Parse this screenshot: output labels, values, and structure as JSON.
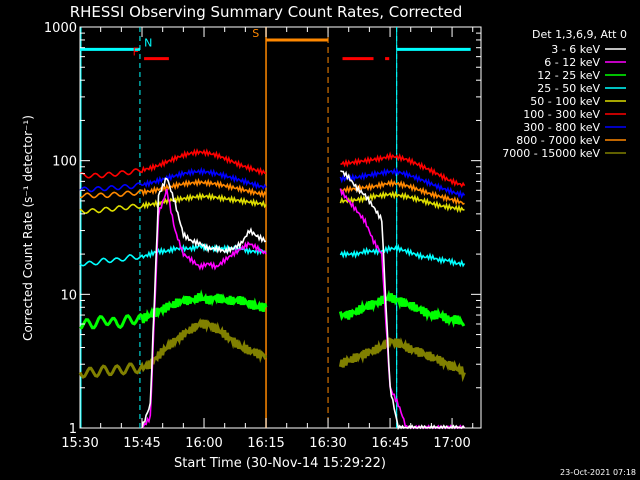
{
  "chart_data": {
    "type": "line",
    "title": "RHESSI Observing Summary Count Rates, Corrected",
    "xlabel": "Start Time (30-Nov-14 15:29:22)",
    "ylabel": "Corrected Count Rate (s⁻¹ detector⁻¹)",
    "yscale": "log",
    "ylim": [
      1,
      1000
    ],
    "xlim_minutes_after_1530": [
      0,
      97
    ],
    "x_ticks": [
      "15:30",
      "15:45",
      "16:00",
      "16:15",
      "16:30",
      "16:45",
      "17:00"
    ],
    "x_tick_minutes": [
      0,
      15,
      30,
      45,
      60,
      75,
      90
    ],
    "y_ticks": [
      "1",
      "10",
      "100",
      "1000"
    ],
    "y_tick_values": [
      1,
      10,
      100,
      1000
    ],
    "legend_header": "Det 1,3,6,9, Att 0",
    "legend_position": "right",
    "data_gap_minutes": [
      45,
      63
    ],
    "series": [
      {
        "name": "3 - 6 keV",
        "color": "#ffffff",
        "x": [
          15,
          17,
          19,
          21,
          23,
          25,
          27,
          29,
          31,
          33,
          35,
          37,
          39,
          41,
          43,
          45,
          63,
          65,
          67,
          69,
          71,
          73,
          75,
          77,
          79,
          81,
          83,
          85,
          87,
          89,
          91,
          93
        ],
        "values": [
          1,
          1.5,
          55,
          75,
          48,
          28,
          25,
          24,
          22,
          22,
          21,
          22,
          24,
          30,
          27,
          25,
          85,
          75,
          62,
          55,
          45,
          36,
          2,
          1,
          1,
          1,
          1,
          1,
          1,
          1,
          1,
          1
        ]
      },
      {
        "name": "6 - 12 keV",
        "color": "#ff00ff",
        "x": [
          15,
          17,
          19,
          21,
          23,
          25,
          27,
          29,
          31,
          33,
          35,
          37,
          39,
          41,
          43,
          45,
          63,
          65,
          67,
          69,
          71,
          73,
          75,
          77,
          79,
          81,
          83,
          85,
          87,
          89,
          91,
          93
        ],
        "values": [
          1,
          1.2,
          40,
          60,
          30,
          20,
          18,
          16,
          17,
          16,
          18,
          20,
          22,
          24,
          22,
          20,
          60,
          50,
          42,
          35,
          25,
          20,
          2,
          1.5,
          1,
          1,
          1,
          1,
          1,
          1,
          1,
          1
        ]
      },
      {
        "name": "12 - 25 keV",
        "color": "#00ff00",
        "x": [
          0,
          3,
          6,
          9,
          12,
          15,
          17,
          19,
          21,
          23,
          25,
          27,
          29,
          31,
          33,
          35,
          37,
          39,
          41,
          43,
          45,
          63,
          65,
          67,
          69,
          71,
          73,
          75,
          77,
          79,
          81,
          83,
          85,
          87,
          89,
          91,
          93
        ],
        "values": [
          6,
          6,
          6.5,
          6,
          6.5,
          6.5,
          7,
          7.5,
          8,
          8.5,
          9,
          9,
          9.5,
          9,
          9.5,
          9,
          9,
          9,
          8.5,
          8,
          8,
          7,
          7,
          7.5,
          8,
          8.5,
          9,
          9.5,
          9,
          8.5,
          8,
          7.5,
          7,
          7,
          6.5,
          6.5,
          6
        ]
      },
      {
        "name": "25 - 50 keV",
        "color": "#00ffff",
        "x": [
          0,
          3,
          6,
          9,
          12,
          15,
          17,
          19,
          21,
          23,
          25,
          27,
          29,
          31,
          33,
          35,
          37,
          39,
          41,
          43,
          45,
          63,
          65,
          67,
          69,
          71,
          73,
          75,
          77,
          79,
          81,
          83,
          85,
          87,
          89,
          91,
          93
        ],
        "values": [
          17,
          17,
          18,
          18,
          19,
          19,
          20,
          21,
          21,
          22,
          22,
          22,
          23,
          22,
          22,
          22,
          22,
          22,
          21,
          21,
          21,
          20,
          20,
          20,
          21,
          21,
          21,
          22,
          22,
          21,
          20,
          19,
          19,
          18,
          18,
          17,
          17
        ]
      },
      {
        "name": "50 - 100 keV",
        "color": "#dddd00",
        "x": [
          0,
          3,
          6,
          9,
          12,
          15,
          17,
          19,
          21,
          23,
          25,
          27,
          29,
          31,
          33,
          35,
          37,
          39,
          41,
          43,
          45,
          63,
          65,
          67,
          69,
          71,
          73,
          75,
          77,
          79,
          81,
          83,
          85,
          87,
          89,
          91,
          93
        ],
        "values": [
          42,
          42,
          43,
          44,
          45,
          46,
          47,
          48,
          50,
          51,
          52,
          53,
          54,
          54,
          53,
          52,
          51,
          50,
          49,
          48,
          47,
          50,
          50,
          51,
          52,
          54,
          55,
          56,
          55,
          54,
          52,
          50,
          48,
          46,
          45,
          44,
          43
        ]
      },
      {
        "name": "100 - 300 keV",
        "color": "#ff0000",
        "x": [
          0,
          3,
          6,
          9,
          12,
          15,
          17,
          19,
          21,
          23,
          25,
          27,
          29,
          31,
          33,
          35,
          37,
          39,
          41,
          43,
          45,
          63,
          65,
          67,
          69,
          71,
          73,
          75,
          77,
          79,
          81,
          83,
          85,
          87,
          89,
          91,
          93
        ],
        "values": [
          78,
          77,
          78,
          80,
          82,
          85,
          88,
          92,
          98,
          104,
          110,
          114,
          116,
          114,
          110,
          104,
          98,
          92,
          88,
          84,
          81,
          95,
          96,
          98,
          100,
          102,
          104,
          108,
          106,
          102,
          96,
          90,
          84,
          78,
          72,
          68,
          65
        ]
      },
      {
        "name": "300 - 800 keV",
        "color": "#0000ff",
        "x": [
          0,
          3,
          6,
          9,
          12,
          15,
          17,
          19,
          21,
          23,
          25,
          27,
          29,
          31,
          33,
          35,
          37,
          39,
          41,
          43,
          45,
          63,
          65,
          67,
          69,
          71,
          73,
          75,
          77,
          79,
          81,
          83,
          85,
          87,
          89,
          91,
          93
        ],
        "values": [
          61,
          61,
          62,
          63,
          64,
          66,
          68,
          71,
          74,
          77,
          80,
          82,
          83,
          82,
          80,
          77,
          74,
          71,
          68,
          65,
          63,
          73,
          74,
          75,
          77,
          79,
          81,
          83,
          82,
          79,
          75,
          71,
          67,
          63,
          60,
          57,
          55
        ]
      },
      {
        "name": "800 - 7000 keV",
        "color": "#ff8800",
        "x": [
          0,
          3,
          6,
          9,
          12,
          15,
          17,
          19,
          21,
          23,
          25,
          27,
          29,
          31,
          33,
          35,
          37,
          39,
          41,
          43,
          45,
          63,
          65,
          67,
          69,
          71,
          73,
          75,
          77,
          79,
          81,
          83,
          85,
          87,
          89,
          91,
          93
        ],
        "values": [
          55,
          55,
          55,
          56,
          57,
          58,
          59,
          61,
          63,
          65,
          67,
          68,
          69,
          68,
          67,
          65,
          63,
          61,
          59,
          57,
          56,
          60,
          61,
          62,
          63,
          64,
          66,
          68,
          67,
          65,
          62,
          59,
          56,
          54,
          52,
          50,
          48
        ]
      },
      {
        "name": "7000 - 15000 keV",
        "color": "#808000",
        "x": [
          0,
          3,
          6,
          9,
          12,
          15,
          17,
          19,
          21,
          23,
          25,
          27,
          29,
          31,
          33,
          35,
          37,
          39,
          41,
          43,
          45,
          63,
          65,
          67,
          69,
          71,
          73,
          75,
          77,
          79,
          81,
          83,
          85,
          87,
          89,
          91,
          93
        ],
        "values": [
          2.6,
          2.6,
          2.7,
          2.7,
          2.8,
          2.8,
          3,
          3.5,
          4,
          4.5,
          5,
          5.5,
          6,
          6,
          5.5,
          5,
          4.5,
          4,
          3.8,
          3.6,
          3.5,
          3,
          3.2,
          3.4,
          3.6,
          3.8,
          4,
          4.5,
          4.3,
          4,
          3.8,
          3.6,
          3.4,
          3.2,
          3,
          2.8,
          2.6
        ]
      }
    ],
    "annotations": [
      {
        "label": "N",
        "color": "#00ffff",
        "text_minute": 16.5,
        "bar_minutes": [
          0,
          14.5
        ],
        "bar_value": 680,
        "dash_minutes": [
          14.5,
          76.6
        ]
      },
      {
        "label": "",
        "color": "#00ffff",
        "bar_minutes": [
          76.6,
          94.5
        ],
        "bar_value": 680
      },
      {
        "label": "F",
        "color": "#ff0000",
        "text_minute": 13.5,
        "bar_minutes": [
          15.5,
          21.5
        ],
        "bar_value": 580
      },
      {
        "label": "",
        "color": "#ff0000",
        "bar_minutes": [
          63.5,
          71
        ],
        "bar_value": 580
      },
      {
        "label": "",
        "color": "#ff0000",
        "bar_minutes": [
          73.8,
          74.8
        ],
        "bar_value": 580
      },
      {
        "label": "S",
        "color": "#ff8800",
        "text_minute": 42.5,
        "bar_minutes": [
          45,
          60
        ],
        "bar_value": 800,
        "solid_minute": 45,
        "dash_minute": 60
      }
    ],
    "timestamp": "23-Oct-2021 07:18"
  }
}
